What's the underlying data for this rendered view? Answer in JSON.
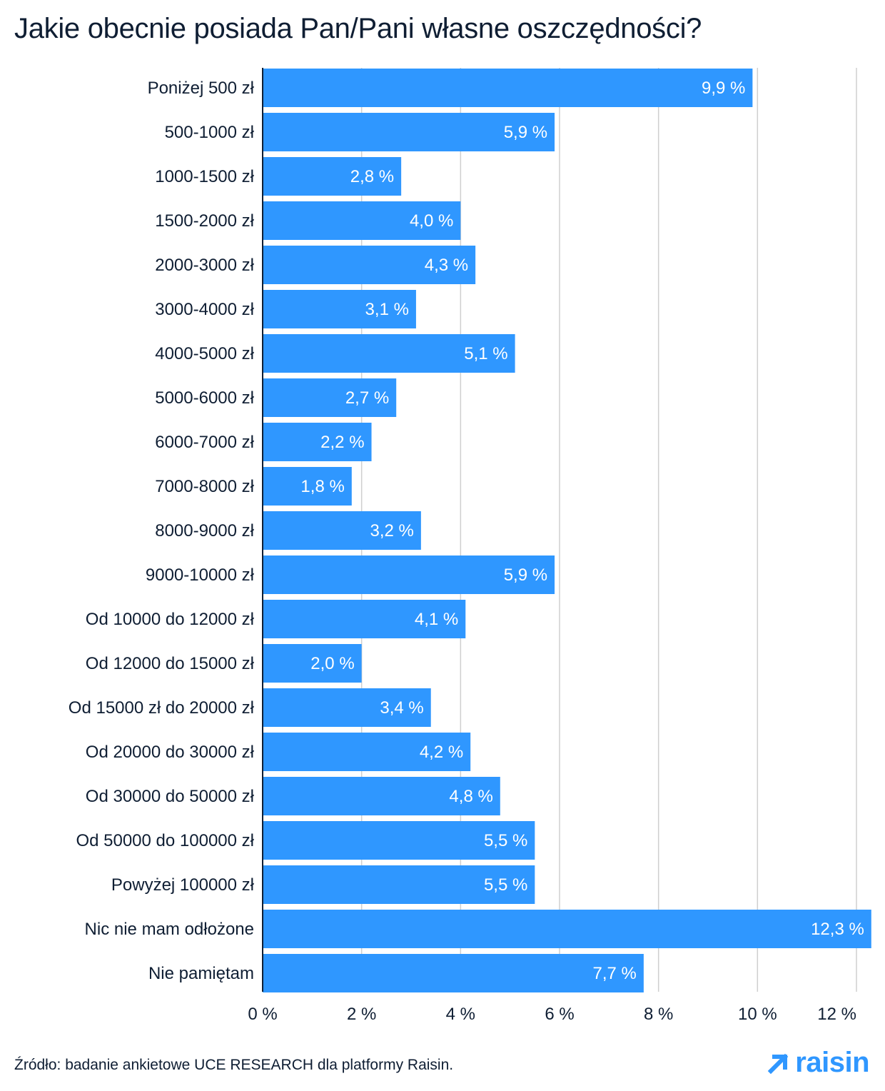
{
  "colors": {
    "bar": "#2f97ff",
    "grid": "#cfcfcf",
    "axis": "#0f1e33",
    "text": "#0f1e33",
    "brand": "#2f97ff"
  },
  "brand": {
    "name": "raisin",
    "icon": "arrow-up-right-icon"
  },
  "source": "Źródło: badanie ankietowe UCE RESEARCH dla platformy Raisin.",
  "chart_data": {
    "type": "bar",
    "orientation": "horizontal",
    "title": "Jakie obecnie posiada Pan/Pani własne oszczędności?",
    "xlabel": "",
    "ylabel": "",
    "xlim": [
      0,
      12
    ],
    "x_ticks": [
      0,
      2,
      4,
      6,
      8,
      10,
      12
    ],
    "x_tick_labels": [
      "0 %",
      "2 %",
      "4 %",
      "6 %",
      "8 %",
      "10 %",
      "12 %"
    ],
    "grid": true,
    "categories": [
      "Poniżej 500 zł",
      "500-1000 zł",
      "1000-1500 zł",
      "1500-2000 zł",
      "2000-3000 zł",
      "3000-4000 zł",
      "4000-5000 zł",
      "5000-6000 zł",
      "6000-7000 zł",
      "7000-8000 zł",
      "8000-9000 zł",
      "9000-10000 zł",
      "Od 10000 do 12000 zł",
      "Od 12000 do 15000 zł",
      "Od 15000 zł do 20000 zł",
      "Od 20000 do 30000 zł",
      "Od 30000 do 50000 zł",
      "Od 50000 do 100000 zł",
      "Powyżej 100000 zł",
      "Nic nie mam odłożone",
      "Nie pamiętam"
    ],
    "values": [
      9.9,
      5.9,
      2.8,
      4.0,
      4.3,
      3.1,
      5.1,
      2.7,
      2.2,
      1.8,
      3.2,
      5.9,
      4.1,
      2.0,
      3.4,
      4.2,
      4.8,
      5.5,
      5.5,
      12.3,
      7.7
    ],
    "value_labels": [
      "9,9 %",
      "5,9 %",
      "2,8 %",
      "4,0 %",
      "4,3 %",
      "3,1 %",
      "5,1 %",
      "2,7 %",
      "2,2 %",
      "1,8 %",
      "3,2 %",
      "5,9 %",
      "4,1 %",
      "2,0 %",
      "3,4 %",
      "4,2 %",
      "4,8 %",
      "5,5 %",
      "5,5 %",
      "12,3 %",
      "7,7 %"
    ]
  }
}
